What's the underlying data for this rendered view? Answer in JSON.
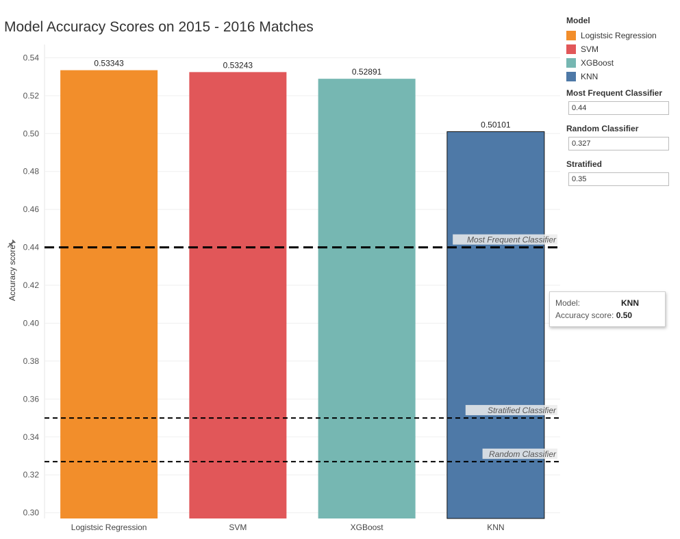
{
  "title": "Model Accuracy Scores on 2015 - 2016 Matches",
  "colors": {
    "orange": "#F28E2B",
    "red": "#E15759",
    "teal": "#76B7B2",
    "blue": "#4E79A7"
  },
  "chart_data": {
    "type": "bar",
    "title": "Model Accuracy Scores on 2015 - 2016 Matches",
    "xlabel": "",
    "ylabel": "Accuracy score",
    "categories": [
      "Logistsic Regression",
      "SVM",
      "XGBoost",
      "KNN"
    ],
    "values": [
      0.53343,
      0.53243,
      0.52891,
      0.50101
    ],
    "data_labels": [
      "0.53343",
      "0.53243",
      "0.52891",
      "0.50101"
    ],
    "bar_colors": [
      "#F28E2B",
      "#E15759",
      "#76B7B2",
      "#4E79A7"
    ],
    "ylim": [
      0.297,
      0.547
    ],
    "yticks": [
      0.3,
      0.32,
      0.34,
      0.36,
      0.38,
      0.4,
      0.42,
      0.44,
      0.46,
      0.48,
      0.5,
      0.52,
      0.54
    ],
    "ytick_labels": [
      "0.30",
      "0.32",
      "0.34",
      "0.36",
      "0.38",
      "0.40",
      "0.42",
      "0.44",
      "0.46",
      "0.48",
      "0.50",
      "0.52",
      "0.54"
    ],
    "grid": true,
    "reference_lines": [
      {
        "label": "Most Frequent Classifier",
        "value": 0.44
      },
      {
        "label": "Stratified Classifier",
        "value": 0.35
      },
      {
        "label": "Random Classifier",
        "value": 0.327
      }
    ],
    "highlighted_category": "KNN"
  },
  "legend": {
    "title": "Model",
    "items": [
      {
        "label": "Logistsic Regression",
        "color": "#F28E2B"
      },
      {
        "label": "SVM",
        "color": "#E15759"
      },
      {
        "label": "XGBoost",
        "color": "#76B7B2"
      },
      {
        "label": "KNN",
        "color": "#4E79A7"
      }
    ]
  },
  "parameters": [
    {
      "label": "Most Frequent Classifier",
      "value": "0.44"
    },
    {
      "label": "Random Classifier",
      "value": "0.327"
    },
    {
      "label": "Stratified",
      "value": "0.35"
    }
  ],
  "tooltip": {
    "model_key": "Model:",
    "model_value": "KNN",
    "score_key": "Accuracy score:",
    "score_value": "0.50"
  }
}
